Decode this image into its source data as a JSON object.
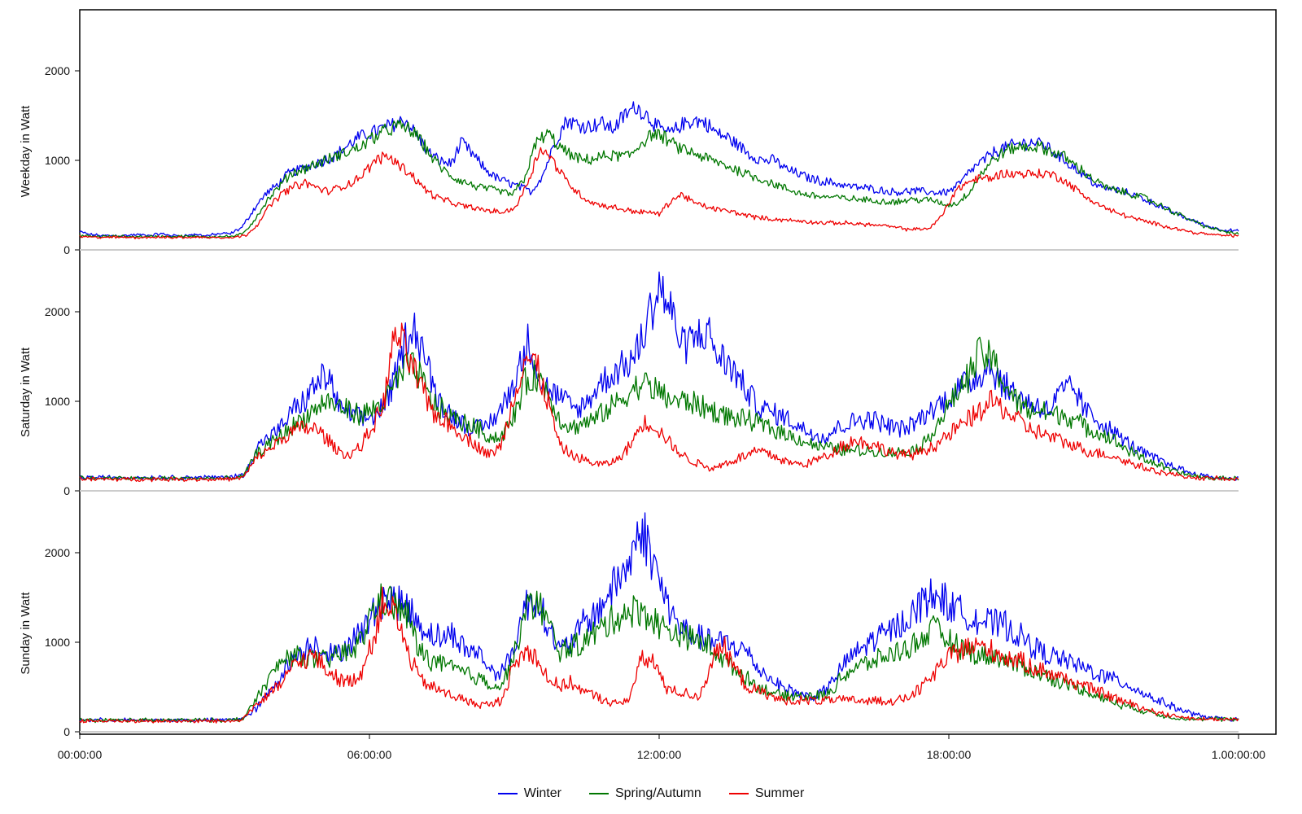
{
  "chart_data": [
    {
      "type": "line",
      "ylabel": "Weekday in Watt",
      "ylim": [
        0,
        2550
      ],
      "yticks": [
        0,
        1000,
        2000
      ],
      "x_range": [
        "00:00:00",
        "1.00:00:00"
      ],
      "series": [
        {
          "name": "Winter",
          "color": "#0000ee",
          "values": [
            200,
            170,
            160,
            160,
            160,
            170,
            160,
            180,
            160,
            160,
            170,
            160,
            180,
            180,
            250,
            450,
            620,
            720,
            850,
            900,
            950,
            1000,
            1050,
            1150,
            1250,
            1300,
            1350,
            1400,
            1460,
            1300,
            1100,
            1000,
            960,
            1200,
            1050,
            900,
            800,
            750,
            700,
            650,
            850,
            1200,
            1450,
            1400,
            1380,
            1420,
            1350,
            1500,
            1600,
            1500,
            1350,
            1300,
            1400,
            1450,
            1420,
            1300,
            1250,
            1150,
            1050,
            1000,
            1000,
            900,
            850,
            800,
            770,
            750,
            720,
            700,
            690,
            670,
            650,
            650,
            660,
            650,
            640,
            650,
            750,
            900,
            1000,
            1100,
            1150,
            1180,
            1200,
            1190,
            1100,
            1000,
            900,
            800,
            700,
            680,
            650,
            620,
            560,
            500,
            440,
            380,
            330,
            280,
            240,
            220,
            210
          ]
        },
        {
          "name": "Spring/Autumn",
          "color": "#007700",
          "values": [
            160,
            150,
            150,
            150,
            150,
            150,
            150,
            150,
            150,
            150,
            150,
            150,
            150,
            150,
            180,
            350,
            550,
            700,
            850,
            900,
            950,
            1000,
            1050,
            1100,
            1150,
            1250,
            1320,
            1380,
            1360,
            1250,
            1050,
            900,
            800,
            750,
            700,
            680,
            650,
            620,
            800,
            1200,
            1300,
            1150,
            1050,
            1000,
            1020,
            1050,
            1050,
            1050,
            1200,
            1300,
            1250,
            1150,
            1100,
            1050,
            1000,
            950,
            900,
            850,
            800,
            750,
            700,
            650,
            620,
            600,
            590,
            580,
            570,
            560,
            550,
            540,
            540,
            560,
            560,
            550,
            500,
            520,
            650,
            850,
            1000,
            1100,
            1150,
            1150,
            1150,
            1100,
            1050,
            950,
            850,
            750,
            680,
            650,
            620,
            580,
            520,
            450,
            390,
            330,
            270,
            230,
            200,
            180
          ]
        },
        {
          "name": "Summer",
          "color": "#ee0000",
          "values": [
            150,
            140,
            140,
            140,
            140,
            140,
            140,
            140,
            140,
            140,
            140,
            140,
            140,
            140,
            160,
            280,
            480,
            620,
            700,
            750,
            700,
            650,
            700,
            750,
            850,
            1000,
            1050,
            950,
            850,
            700,
            600,
            550,
            500,
            480,
            450,
            430,
            420,
            500,
            800,
            1150,
            1000,
            800,
            650,
            550,
            500,
            480,
            450,
            430,
            420,
            400,
            550,
            620,
            520,
            480,
            450,
            430,
            400,
            370,
            350,
            340,
            330,
            320,
            310,
            300,
            300,
            300,
            290,
            280,
            270,
            250,
            230,
            230,
            250,
            400,
            650,
            750,
            800,
            800,
            850,
            850,
            850,
            850,
            850,
            800,
            700,
            600,
            520,
            450,
            400,
            360,
            320,
            290,
            260,
            230,
            200,
            180,
            170,
            160,
            160
          ]
        }
      ]
    },
    {
      "type": "line",
      "ylabel": "Saturday in Watt",
      "ylim": [
        0,
        2550
      ],
      "yticks": [
        0,
        1000,
        2000
      ],
      "x_range": [
        "00:00:00",
        "1.00:00:00"
      ],
      "series": [
        {
          "name": "Winter",
          "color": "#0000ee",
          "values": [
            150,
            150,
            150,
            150,
            150,
            150,
            150,
            150,
            150,
            150,
            150,
            150,
            150,
            160,
            180,
            500,
            600,
            700,
            900,
            1000,
            1200,
            1300,
            900,
            850,
            800,
            850,
            1000,
            1400,
            1900,
            1600,
            1100,
            900,
            800,
            700,
            700,
            800,
            1000,
            1300,
            1700,
            1200,
            1100,
            1000,
            900,
            1000,
            1200,
            1300,
            1400,
            1500,
            1900,
            2300,
            2000,
            1600,
            1700,
            1800,
            1500,
            1400,
            1200,
            1000,
            900,
            850,
            800,
            700,
            650,
            600,
            700,
            750,
            800,
            800,
            750,
            700,
            700,
            800,
            900,
            1000,
            1100,
            1200,
            1300,
            1400,
            1200,
            1100,
            1000,
            950,
            900,
            1100,
            1150,
            900,
            800,
            700,
            600,
            500,
            420,
            360,
            300,
            250,
            200,
            170,
            150,
            140,
            140
          ]
        },
        {
          "name": "Spring/Autumn",
          "color": "#007700",
          "values": [
            150,
            140,
            140,
            140,
            140,
            140,
            140,
            140,
            140,
            140,
            140,
            140,
            140,
            140,
            160,
            400,
            500,
            600,
            700,
            800,
            900,
            1000,
            950,
            900,
            850,
            900,
            1000,
            1200,
            1400,
            1300,
            1000,
            900,
            800,
            750,
            700,
            600,
            600,
            800,
            1200,
            1300,
            1100,
            800,
            700,
            750,
            800,
            900,
            1000,
            1100,
            1200,
            1150,
            1050,
            1000,
            1000,
            950,
            900,
            850,
            800,
            800,
            750,
            700,
            650,
            600,
            550,
            500,
            480,
            460,
            450,
            450,
            440,
            430,
            430,
            450,
            500,
            700,
            900,
            1100,
            1300,
            1550,
            1450,
            1200,
            1000,
            900,
            900,
            850,
            850,
            800,
            700,
            650,
            600,
            500,
            420,
            360,
            300,
            240,
            200,
            170,
            150,
            140,
            140,
            140
          ]
        },
        {
          "name": "Summer",
          "color": "#ee0000",
          "values": [
            140,
            130,
            130,
            130,
            130,
            130,
            130,
            130,
            130,
            130,
            130,
            130,
            130,
            130,
            150,
            350,
            450,
            550,
            650,
            700,
            700,
            600,
            450,
            400,
            500,
            700,
            1000,
            1800,
            1500,
            1200,
            900,
            800,
            700,
            600,
            500,
            400,
            500,
            1000,
            1500,
            1400,
            1000,
            500,
            400,
            350,
            300,
            300,
            350,
            500,
            750,
            750,
            600,
            450,
            350,
            300,
            250,
            300,
            350,
            400,
            450,
            400,
            350,
            300,
            300,
            350,
            400,
            500,
            550,
            550,
            500,
            450,
            400,
            400,
            450,
            500,
            600,
            700,
            800,
            900,
            1000,
            900,
            800,
            700,
            650,
            600,
            550,
            500,
            450,
            420,
            400,
            350,
            300,
            260,
            220,
            190,
            170,
            150,
            140,
            140,
            130,
            130
          ]
        }
      ]
    },
    {
      "type": "line",
      "ylabel": "Sunday in Watt",
      "ylim": [
        0,
        2550
      ],
      "yticks": [
        0,
        1000,
        2000
      ],
      "x_range": [
        "00:00:00",
        "1.00:00:00"
      ],
      "series": [
        {
          "name": "Winter",
          "color": "#0000ee",
          "values": [
            130,
            130,
            130,
            130,
            130,
            130,
            130,
            130,
            130,
            130,
            130,
            130,
            130,
            140,
            150,
            250,
            400,
            600,
            800,
            900,
            1000,
            900,
            850,
            1000,
            1100,
            1300,
            1500,
            1450,
            1400,
            1200,
            1100,
            1050,
            1100,
            900,
            900,
            700,
            650,
            900,
            1400,
            1500,
            1200,
            900,
            1000,
            1200,
            1300,
            1500,
            1700,
            1900,
            2300,
            1900,
            1500,
            1200,
            1100,
            1050,
            1000,
            1000,
            950,
            900,
            700,
            600,
            500,
            450,
            400,
            400,
            500,
            700,
            850,
            950,
            1050,
            1100,
            1200,
            1300,
            1450,
            1550,
            1450,
            1350,
            1300,
            1250,
            1200,
            1200,
            1100,
            1000,
            900,
            850,
            800,
            750,
            700,
            650,
            600,
            550,
            500,
            420,
            360,
            300,
            250,
            200,
            170,
            150,
            140,
            140
          ]
        },
        {
          "name": "Spring/Autumn",
          "color": "#007700",
          "values": [
            130,
            130,
            130,
            130,
            130,
            130,
            130,
            130,
            130,
            130,
            130,
            130,
            130,
            130,
            150,
            350,
            550,
            750,
            850,
            850,
            800,
            800,
            850,
            900,
            1000,
            1350,
            1500,
            1400,
            1300,
            900,
            800,
            750,
            700,
            650,
            600,
            550,
            500,
            800,
            1300,
            1500,
            1200,
            900,
            950,
            1000,
            1100,
            1200,
            1300,
            1350,
            1350,
            1250,
            1150,
            1100,
            1050,
            1000,
            950,
            800,
            700,
            600,
            500,
            450,
            400,
            400,
            400,
            400,
            420,
            600,
            700,
            750,
            800,
            850,
            900,
            950,
            1050,
            1150,
            1050,
            950,
            900,
            850,
            850,
            800,
            750,
            700,
            650,
            600,
            550,
            500,
            450,
            400,
            350,
            300,
            270,
            230,
            200,
            170,
            150,
            140,
            140,
            140,
            140,
            140
          ]
        },
        {
          "name": "Summer",
          "color": "#ee0000",
          "values": [
            120,
            120,
            120,
            120,
            120,
            120,
            120,
            120,
            120,
            120,
            120,
            120,
            120,
            120,
            150,
            300,
            400,
            500,
            700,
            800,
            850,
            700,
            600,
            550,
            650,
            1000,
            1500,
            1300,
            900,
            600,
            500,
            450,
            400,
            350,
            300,
            300,
            350,
            700,
            900,
            850,
            600,
            500,
            550,
            450,
            400,
            350,
            300,
            400,
            800,
            800,
            500,
            450,
            420,
            400,
            800,
            950,
            700,
            500,
            450,
            400,
            350,
            350,
            350,
            350,
            350,
            350,
            350,
            350,
            350,
            350,
            350,
            400,
            500,
            650,
            800,
            900,
            950,
            950,
            900,
            850,
            800,
            750,
            700,
            650,
            600,
            550,
            500,
            450,
            400,
            350,
            300,
            260,
            220,
            190,
            170,
            150,
            140,
            140,
            140,
            140
          ]
        }
      ]
    }
  ],
  "x_ticks": [
    "00:00:00",
    "06:00:00",
    "12:00:00",
    "18:00:00",
    "1.00:00:00"
  ],
  "legend": [
    {
      "name": "Winter",
      "color": "#0000ee"
    },
    {
      "name": "Spring/Autumn",
      "color": "#007700"
    },
    {
      "name": "Summer",
      "color": "#ee0000"
    }
  ]
}
